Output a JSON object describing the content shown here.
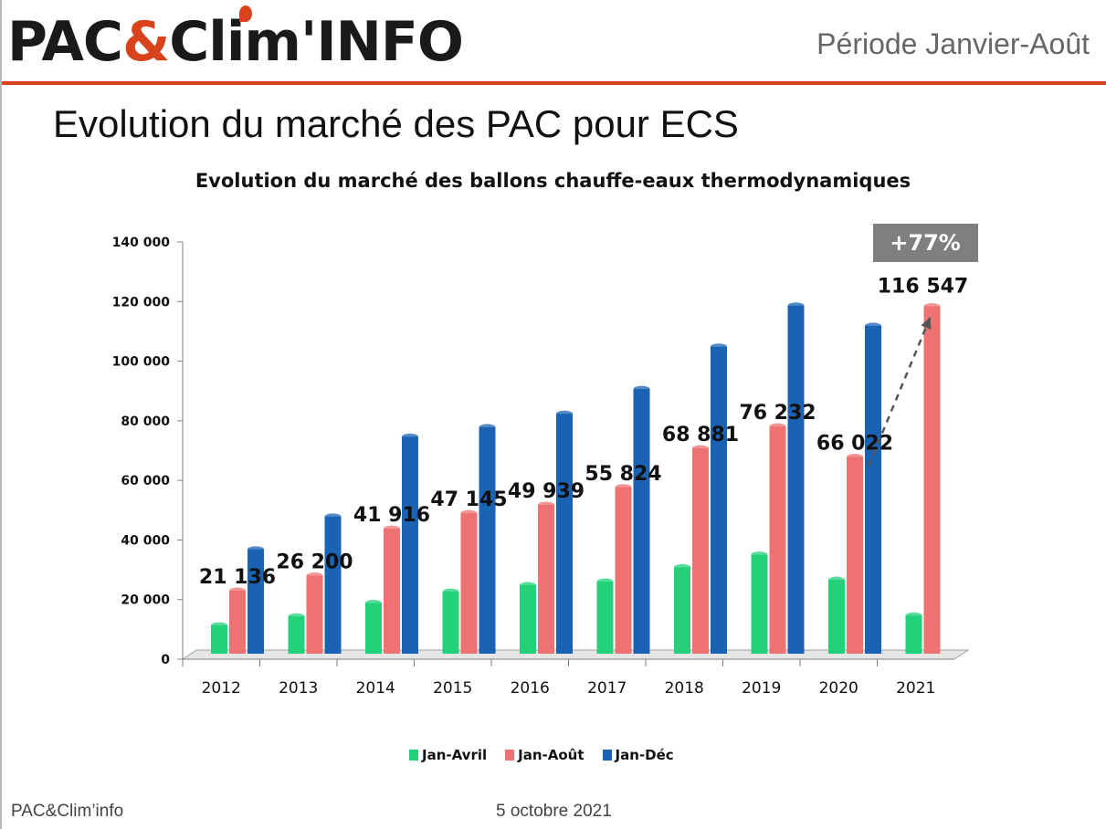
{
  "header": {
    "logo_part1": "PAC",
    "logo_amp": "&",
    "logo_part2": "Clim'INFO",
    "period": "Période Janvier-Août"
  },
  "slide": {
    "title": "Evolution du marché des PAC pour ECS"
  },
  "footer": {
    "left": "PAC&Clim’info",
    "date": "5 octobre 2021"
  },
  "colors": {
    "accent": "#d8431e",
    "jan_avril": "#22d27a",
    "jan_aout": "#ee7272",
    "jan_dec": "#1a63b4"
  },
  "chart_data": {
    "type": "bar",
    "title": "Evolution du marché des ballons chauffe-eaux thermodynamiques",
    "categories": [
      "2012",
      "2013",
      "2014",
      "2015",
      "2016",
      "2017",
      "2018",
      "2019",
      "2020",
      "2021"
    ],
    "series": [
      {
        "name": "Jan-Avril",
        "color": "#22d27a",
        "values": [
          9500,
          12500,
          17000,
          20800,
          23000,
          24200,
          29000,
          33200,
          24800,
          12800
        ]
      },
      {
        "name": "Jan-Août",
        "color": "#ee7272",
        "values": [
          21136,
          26200,
          41916,
          47145,
          49939,
          55824,
          68881,
          76232,
          66022,
          116547
        ]
      },
      {
        "name": "Jan-Déc",
        "color": "#1a63b4",
        "values": [
          35000,
          46000,
          72800,
          76000,
          80500,
          88800,
          103000,
          116800,
          110000,
          null
        ]
      }
    ],
    "data_labels": [
      "21 136",
      "26 200",
      "41 916",
      "47 145",
      "49 939",
      "55 824",
      "68 881",
      "76 232",
      "66 022",
      "116 547"
    ],
    "annotation": "+77%",
    "ylim": [
      0,
      140000
    ],
    "yticks": [
      0,
      20000,
      40000,
      60000,
      80000,
      100000,
      120000,
      140000
    ],
    "ytick_labels": [
      "0",
      "20 000",
      "40 000",
      "60 000",
      "80 000",
      "100 000",
      "120 000",
      "140 000"
    ],
    "grid": false,
    "legend": "bottom"
  }
}
